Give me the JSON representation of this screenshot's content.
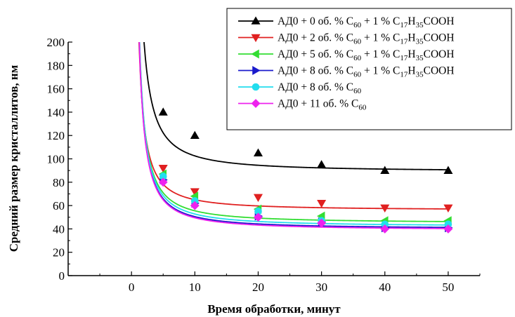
{
  "chart_data": {
    "type": "scatter",
    "title": "",
    "xlabel": "Время обработки, минут",
    "ylabel": "Средний размер кристаллитов, нм",
    "xlim": [
      -10,
      55
    ],
    "ylim": [
      0,
      200
    ],
    "x_ticks": [
      0,
      10,
      20,
      30,
      40,
      50
    ],
    "y_ticks": [
      0,
      20,
      40,
      60,
      80,
      100,
      120,
      140,
      160,
      180,
      200
    ],
    "grid": false,
    "legend_placement": "top-right",
    "x": [
      5,
      10,
      20,
      30,
      40,
      50
    ],
    "series": [
      {
        "name": "АД0 + 0 об. % C60 + 1 % C17H35COOH",
        "legend": {
          "prefix": "АД0 + 0 об. % C",
          "sub1": "60",
          "mid": " + 1 % C",
          "sub2": "17",
          "h": "H",
          "sub3": "35",
          "suffix": "COOH"
        },
        "color": "#000000",
        "marker": "triangle-up",
        "values": [
          140,
          120,
          105,
          95,
          90,
          90
        ],
        "fit": {
          "a": 270,
          "b": 89
        }
      },
      {
        "name": "АД0 + 2 об. % C60 + 1 % C17H35COOH",
        "legend": {
          "prefix": "АД0 + 2 об. % C",
          "sub1": "60",
          "mid": " + 1 % C",
          "sub2": "17",
          "h": "H",
          "sub3": "35",
          "suffix": "COOH"
        },
        "color": "#e02020",
        "marker": "triangle-down",
        "values": [
          92,
          72,
          67,
          62,
          58,
          58
        ],
        "fit": {
          "a": 180,
          "b": 56
        }
      },
      {
        "name": "АД0 + 5 об. % C60 + 1 % C17H35COOH",
        "legend": {
          "prefix": "АД0 + 5 об. % C",
          "sub1": "60",
          "mid": " + 1 % C",
          "sub2": "17",
          "h": "H",
          "sub3": "35",
          "suffix": "COOH"
        },
        "color": "#33dd33",
        "marker": "triangle-left",
        "values": [
          87,
          68,
          57,
          51,
          47,
          47
        ],
        "fit": {
          "a": 210,
          "b": 45
        }
      },
      {
        "name": "АД0 + 8 об. % C60 + 1 % C17H35COOH",
        "legend": {
          "prefix": "АД0 + 8 об. % C",
          "sub1": "60",
          "mid": " + 1 % C",
          "sub2": "17",
          "h": "H",
          "sub3": "35",
          "suffix": "COOH"
        },
        "color": "#1a1acc",
        "marker": "triangle-right",
        "values": [
          82,
          62,
          51,
          46,
          41,
          41
        ],
        "fit": {
          "a": 210,
          "b": 40
        }
      },
      {
        "name": "АД0 + 8 об. % C60",
        "legend": {
          "prefix": "АД0 + 8 об. % C",
          "sub1": "60",
          "mid": "",
          "sub2": "",
          "h": "",
          "sub3": "",
          "suffix": ""
        },
        "color": "#22ddee",
        "marker": "circle",
        "values": [
          85,
          64,
          55,
          47,
          44,
          44
        ],
        "fit": {
          "a": 215,
          "b": 42
        }
      },
      {
        "name": "АД0 + 11 об. % C60",
        "legend": {
          "prefix": "АД0 + 11 об. % C",
          "sub1": "60",
          "mid": "",
          "sub2": "",
          "h": "",
          "sub3": "",
          "suffix": ""
        },
        "color": "#ee22ee",
        "marker": "diamond",
        "values": [
          80,
          60,
          50,
          45,
          40,
          40
        ],
        "fit": {
          "a": 210,
          "b": 39
        }
      }
    ]
  }
}
